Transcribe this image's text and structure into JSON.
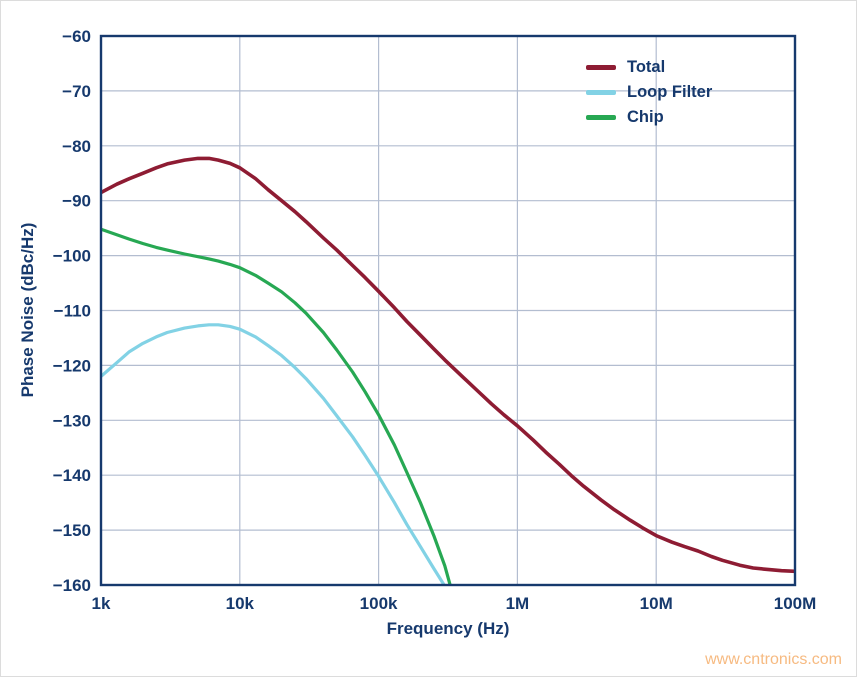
{
  "watermark": {
    "text": "www.cntronics.com",
    "color": "#f5a962"
  },
  "chart_data": {
    "type": "line",
    "title": "",
    "xlabel": "Frequency (Hz)",
    "ylabel": "Phase Noise (dBc/Hz)",
    "x_scale": "log",
    "xlim": [
      1000,
      100000000
    ],
    "ylim": [
      -160,
      -60
    ],
    "grid": true,
    "legend_position": "top-right-inside",
    "axis_color": "#16396d",
    "grid_color": "#b3bdd0",
    "x_ticks": [
      {
        "value": 1000,
        "label": "1k"
      },
      {
        "value": 10000,
        "label": "10k"
      },
      {
        "value": 100000,
        "label": "100k"
      },
      {
        "value": 1000000,
        "label": "1M"
      },
      {
        "value": 10000000,
        "label": "10M"
      },
      {
        "value": 100000000,
        "label": "100M"
      }
    ],
    "y_ticks": [
      {
        "value": -60,
        "label": "−60"
      },
      {
        "value": -70,
        "label": "−70"
      },
      {
        "value": -80,
        "label": "−80"
      },
      {
        "value": -90,
        "label": "−90"
      },
      {
        "value": -100,
        "label": "−100"
      },
      {
        "value": -110,
        "label": "−110"
      },
      {
        "value": -120,
        "label": "−120"
      },
      {
        "value": -130,
        "label": "−130"
      },
      {
        "value": -140,
        "label": "−140"
      },
      {
        "value": -150,
        "label": "−150"
      },
      {
        "value": -160,
        "label": "−160"
      }
    ],
    "series": [
      {
        "name": "Total",
        "color": "#8e1c33",
        "width": 3.6,
        "points": [
          [
            1000,
            -88.5
          ],
          [
            1300,
            -87.0
          ],
          [
            1600,
            -86.0
          ],
          [
            2000,
            -85.0
          ],
          [
            2500,
            -84.0
          ],
          [
            3000,
            -83.3
          ],
          [
            4000,
            -82.6
          ],
          [
            5000,
            -82.3
          ],
          [
            6000,
            -82.3
          ],
          [
            7000,
            -82.6
          ],
          [
            8500,
            -83.2
          ],
          [
            10000,
            -84.0
          ],
          [
            13000,
            -86.0
          ],
          [
            16000,
            -88.0
          ],
          [
            20000,
            -90.0
          ],
          [
            25000,
            -92.0
          ],
          [
            30000,
            -93.8
          ],
          [
            40000,
            -96.8
          ],
          [
            50000,
            -99.0
          ],
          [
            65000,
            -101.8
          ],
          [
            80000,
            -104.0
          ],
          [
            100000,
            -106.5
          ],
          [
            130000,
            -109.5
          ],
          [
            160000,
            -112.0
          ],
          [
            200000,
            -114.5
          ],
          [
            250000,
            -117.0
          ],
          [
            300000,
            -119.0
          ],
          [
            400000,
            -122.0
          ],
          [
            500000,
            -124.3
          ],
          [
            650000,
            -127.0
          ],
          [
            800000,
            -129.0
          ],
          [
            1000000,
            -131.0
          ],
          [
            1300000,
            -133.6
          ],
          [
            1600000,
            -135.8
          ],
          [
            2000000,
            -138.0
          ],
          [
            2500000,
            -140.3
          ],
          [
            3000000,
            -142.0
          ],
          [
            4000000,
            -144.5
          ],
          [
            5000000,
            -146.3
          ],
          [
            6500000,
            -148.2
          ],
          [
            8000000,
            -149.6
          ],
          [
            10000000,
            -151.0
          ],
          [
            13000000,
            -152.2
          ],
          [
            16000000,
            -153.0
          ],
          [
            20000000,
            -153.8
          ],
          [
            25000000,
            -154.8
          ],
          [
            30000000,
            -155.5
          ],
          [
            40000000,
            -156.4
          ],
          [
            50000000,
            -156.9
          ],
          [
            65000000,
            -157.2
          ],
          [
            80000000,
            -157.4
          ],
          [
            100000000,
            -157.5
          ]
        ]
      },
      {
        "name": "Loop Filter",
        "color": "#82d2e5",
        "width": 3.2,
        "points": [
          [
            1000,
            -122.0
          ],
          [
            1300,
            -119.5
          ],
          [
            1600,
            -117.5
          ],
          [
            2000,
            -116.0
          ],
          [
            2500,
            -114.8
          ],
          [
            3000,
            -114.0
          ],
          [
            4000,
            -113.2
          ],
          [
            5000,
            -112.8
          ],
          [
            6000,
            -112.6
          ],
          [
            7000,
            -112.6
          ],
          [
            8500,
            -112.9
          ],
          [
            10000,
            -113.4
          ],
          [
            13000,
            -114.8
          ],
          [
            16000,
            -116.4
          ],
          [
            20000,
            -118.2
          ],
          [
            25000,
            -120.4
          ],
          [
            30000,
            -122.4
          ],
          [
            40000,
            -126.0
          ],
          [
            50000,
            -129.2
          ],
          [
            65000,
            -133.0
          ],
          [
            80000,
            -136.4
          ],
          [
            100000,
            -140.2
          ],
          [
            130000,
            -145.0
          ],
          [
            160000,
            -149.0
          ],
          [
            200000,
            -153.0
          ],
          [
            250000,
            -157.0
          ],
          [
            300000,
            -160.2
          ],
          [
            320000,
            -161.5
          ]
        ]
      },
      {
        "name": "Chip",
        "color": "#27a853",
        "width": 3.2,
        "points": [
          [
            1000,
            -95.2
          ],
          [
            1300,
            -96.2
          ],
          [
            1600,
            -97.0
          ],
          [
            2000,
            -97.8
          ],
          [
            2500,
            -98.5
          ],
          [
            3000,
            -99.0
          ],
          [
            4000,
            -99.7
          ],
          [
            5000,
            -100.2
          ],
          [
            6000,
            -100.6
          ],
          [
            7000,
            -101.0
          ],
          [
            8500,
            -101.6
          ],
          [
            10000,
            -102.2
          ],
          [
            13000,
            -103.6
          ],
          [
            16000,
            -105.0
          ],
          [
            20000,
            -106.6
          ],
          [
            25000,
            -108.6
          ],
          [
            30000,
            -110.5
          ],
          [
            40000,
            -114.0
          ],
          [
            50000,
            -117.2
          ],
          [
            65000,
            -121.2
          ],
          [
            80000,
            -124.8
          ],
          [
            100000,
            -129.0
          ],
          [
            130000,
            -134.5
          ],
          [
            160000,
            -139.5
          ],
          [
            200000,
            -145.0
          ],
          [
            250000,
            -151.0
          ],
          [
            300000,
            -156.5
          ],
          [
            340000,
            -161.5
          ]
        ]
      }
    ]
  }
}
